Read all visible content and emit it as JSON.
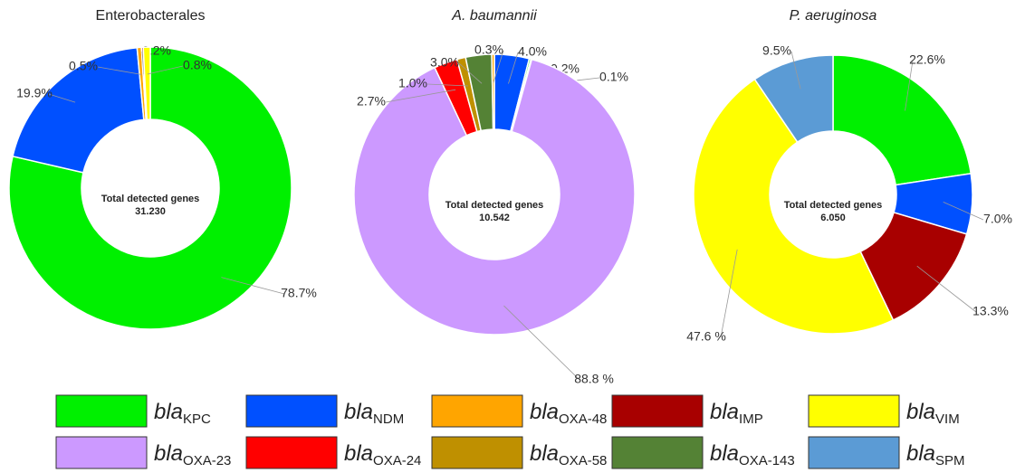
{
  "chart_data": [
    {
      "type": "pie",
      "title": "Enterobacterales",
      "title_italic": false,
      "center_label": "Total detected genes",
      "total": {
        "value": 31230,
        "label": "31.230"
      },
      "categories": [
        "KPC",
        "NDM",
        "OXA-48",
        "IMP",
        "VIM"
      ],
      "values": [
        78.7,
        19.9,
        0.5,
        0.2,
        0.8
      ],
      "value_labels": [
        "78.7%",
        "19.9%",
        "0.5%",
        "0.2%",
        "0.8%"
      ]
    },
    {
      "type": "pie",
      "title": "A. baumannii",
      "title_italic": true,
      "center_label": "Total detected genes",
      "total": {
        "value": 10542,
        "label": "10.542"
      },
      "categories": [
        "NDM",
        "KPC",
        "VIM",
        "OXA-23",
        "OXA-24",
        "OXA-58",
        "OXA-143",
        "OXA-48"
      ],
      "values": [
        4.0,
        0.2,
        0.1,
        88.8,
        2.7,
        1.0,
        3.0,
        0.3
      ],
      "value_labels": [
        "4.0%",
        "0.2%",
        "0.1%",
        "88.8 %",
        "2.7%",
        "1.0%",
        "3.0%",
        "0.3%"
      ]
    },
    {
      "type": "pie",
      "title": "P. aeruginosa",
      "title_italic": true,
      "center_label": "Total detected genes",
      "total": {
        "value": 6050,
        "label": "6.050"
      },
      "categories": [
        "KPC",
        "NDM",
        "IMP",
        "VIM",
        "SPM"
      ],
      "values": [
        22.6,
        7.0,
        13.3,
        47.6,
        9.5
      ],
      "value_labels": [
        "22.6%",
        "7.0%",
        "13.3%",
        "47.6 %",
        "9.5%"
      ]
    }
  ],
  "legend": [
    {
      "name": "bla",
      "subscript": "KPC",
      "color": "#00f000"
    },
    {
      "name": "bla",
      "subscript": "NDM",
      "color": "#0050ff"
    },
    {
      "name": "bla",
      "subscript": "OXA-48",
      "color": "#ffa500"
    },
    {
      "name": "bla",
      "subscript": "IMP",
      "color": "#a80000"
    },
    {
      "name": "bla",
      "subscript": "VIM",
      "color": "#ffff00"
    },
    {
      "name": "bla",
      "subscript": "OXA-23",
      "color": "#cc99ff"
    },
    {
      "name": "bla",
      "subscript": "OXA-24",
      "color": "#ff0000"
    },
    {
      "name": "bla",
      "subscript": "OXA-58",
      "color": "#bf9000"
    },
    {
      "name": "bla",
      "subscript": "OXA-143",
      "color": "#548235"
    },
    {
      "name": "bla",
      "subscript": "SPM",
      "color": "#5b9bd5"
    }
  ]
}
